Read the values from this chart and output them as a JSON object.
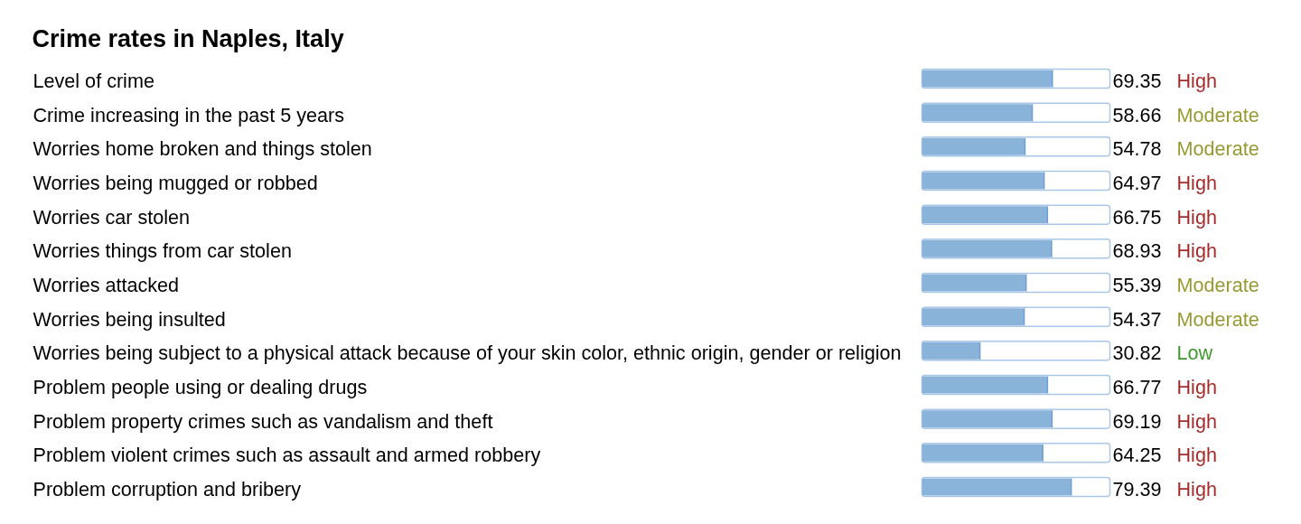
{
  "chart_data": {
    "type": "bar",
    "orientation": "horizontal",
    "title": "Crime rates in Naples, Italy",
    "categories": [
      "Level of crime",
      "Crime increasing in the past 5 years",
      "Worries home broken and things stolen",
      "Worries being mugged or robbed",
      "Worries car stolen",
      "Worries things from car stolen",
      "Worries attacked",
      "Worries being insulted",
      "Worries being subject to a physical attack because of your skin color, ethnic origin, gender or religion",
      "Problem people using or dealing drugs",
      "Problem property crimes such as vandalism and theft",
      "Problem violent crimes such as assault and armed robbery",
      "Problem corruption and bribery"
    ],
    "values": [
      69.35,
      58.66,
      54.78,
      64.97,
      66.75,
      68.93,
      55.39,
      54.37,
      30.82,
      66.77,
      69.19,
      64.25,
      79.39
    ],
    "color": "#8ab3da",
    "xlim": [
      0,
      100
    ],
    "data_labels": true,
    "tick_labels": "y",
    "annotations": [
      "High",
      "Moderate",
      "Moderate",
      "High",
      "High",
      "High",
      "Moderate",
      "Moderate",
      "Low",
      "High",
      "High",
      "High",
      "High"
    ]
  }
}
